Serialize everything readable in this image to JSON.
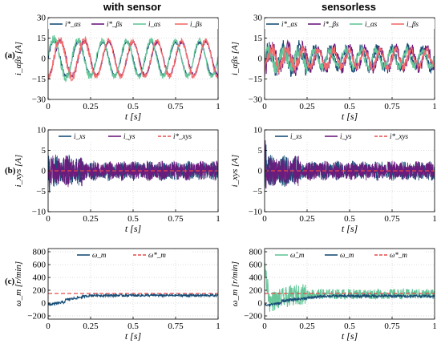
{
  "column_titles": [
    "with sensor",
    "sensorless"
  ],
  "row_labels": [
    "(a)",
    "(b)",
    "(c)"
  ],
  "colors": {
    "blue": "#184e77",
    "purple": "#6d1a7e",
    "green": "#66c79a",
    "salmon": "#f26d6d",
    "dashed_red": "#e84a4a"
  },
  "chart_data": [
    {
      "type": "line",
      "id": "a-sensor",
      "xlabel": "t [s]",
      "ylabel": "i_αβs [A]",
      "xlim": [
        0,
        1
      ],
      "ylim": [
        -30,
        30
      ],
      "xticks": [
        0,
        0.25,
        0.5,
        0.75,
        1
      ],
      "xticklabels": [
        "0",
        "0.25",
        "0.5",
        "0.75",
        "1"
      ],
      "yticks": [
        -30,
        -15,
        0,
        15,
        30
      ],
      "yticklabels": [
        "−30",
        "−15",
        "0",
        "15",
        "30"
      ],
      "legend": "top",
      "series": [
        {
          "name": "i*_αs",
          "color": "#184e77",
          "style": "sine",
          "amp": 12,
          "freq": 7,
          "phase": 0,
          "noise": 1
        },
        {
          "name": "i*_βs",
          "color": "#6d1a7e",
          "style": "sine",
          "amp": 12,
          "freq": 7,
          "phase": -1.57,
          "noise": 1
        },
        {
          "name": "i_αs",
          "color": "#66c79a",
          "style": "sine",
          "amp": 13,
          "freq": 7,
          "phase": 0.1,
          "noise": 2
        },
        {
          "name": "i_βs",
          "color": "#f26d6d",
          "style": "sine",
          "amp": 13,
          "freq": 7,
          "phase": -1.47,
          "noise": 2
        }
      ]
    },
    {
      "type": "line",
      "id": "a-sensorless",
      "xlabel": "t [s]",
      "ylabel": "i_αβs [A]",
      "xlim": [
        0,
        1
      ],
      "ylim": [
        -30,
        30
      ],
      "xticks": [
        0,
        0.25,
        0.5,
        0.75,
        1
      ],
      "xticklabels": [
        "0",
        "0.25",
        "0.5",
        "0.75",
        "1"
      ],
      "yticks": [
        -30,
        -15,
        0,
        15,
        30
      ],
      "yticklabels": [
        "−30",
        "−15",
        "0",
        "15",
        "30"
      ],
      "legend": "top",
      "series": [
        {
          "name": "i*_αs",
          "color": "#184e77",
          "style": "sine",
          "amp": 7,
          "freq": 11,
          "phase": 0,
          "noise": 4
        },
        {
          "name": "i*_βs",
          "color": "#6d1a7e",
          "style": "sine",
          "amp": 7,
          "freq": 11,
          "phase": -1.57,
          "noise": 4
        },
        {
          "name": "i_αs",
          "color": "#66c79a",
          "style": "sine",
          "amp": 6,
          "freq": 11,
          "phase": 0.2,
          "noise": 3
        },
        {
          "name": "i_βs",
          "color": "#f26d6d",
          "style": "sine",
          "amp": 6,
          "freq": 11,
          "phase": -1.37,
          "noise": 3
        }
      ]
    },
    {
      "type": "line",
      "id": "b-sensor",
      "xlabel": "t [s]",
      "ylabel": "i_xys [A]",
      "xlim": [
        0,
        1
      ],
      "ylim": [
        -10,
        10
      ],
      "xticks": [
        0,
        0.25,
        0.5,
        0.75,
        1
      ],
      "xticklabels": [
        "0",
        "0.25",
        "0.5",
        "0.75",
        "1"
      ],
      "yticks": [
        -10,
        -5,
        0,
        5,
        10
      ],
      "yticklabels": [
        "−10",
        "−5",
        "0",
        "5",
        "10"
      ],
      "legend": "top",
      "series": [
        {
          "name": "i_xs",
          "color": "#184e77",
          "style": "noise",
          "amp": 2.5
        },
        {
          "name": "i_ys",
          "color": "#6d1a7e",
          "style": "noise",
          "amp": 2.5
        },
        {
          "name": "i*_xys",
          "color": "#e84a4a",
          "style": "dashed",
          "value": 0
        }
      ]
    },
    {
      "type": "line",
      "id": "b-sensorless",
      "xlabel": "t [s]",
      "ylabel": "i_xys [A]",
      "xlim": [
        0,
        1
      ],
      "ylim": [
        -10,
        10
      ],
      "xticks": [
        0,
        0.25,
        0.5,
        0.75,
        1
      ],
      "xticklabels": [
        "0",
        "0.25",
        "0.5",
        "0.75",
        "1"
      ],
      "yticks": [
        -10,
        -5,
        0,
        5,
        10
      ],
      "yticklabels": [
        "−10",
        "−5",
        "0",
        "5",
        "10"
      ],
      "legend": "top",
      "series": [
        {
          "name": "i_xs",
          "color": "#184e77",
          "style": "noise",
          "amp": 2.5
        },
        {
          "name": "i_ys",
          "color": "#6d1a7e",
          "style": "noise",
          "amp": 2.5
        },
        {
          "name": "i*_xys",
          "color": "#e84a4a",
          "style": "dashed",
          "value": 0
        }
      ]
    },
    {
      "type": "line",
      "id": "c-sensor",
      "xlabel": "t [s]",
      "ylabel": "ω_m [r/min]",
      "xlim": [
        0,
        1
      ],
      "ylim": [
        -250,
        850
      ],
      "xticks": [
        0,
        0.25,
        0.5,
        0.75,
        1
      ],
      "xticklabels": [
        "0",
        "0.25",
        "0.5",
        "0.75",
        "1"
      ],
      "yticks": [
        -200,
        0,
        200,
        400,
        600,
        800
      ],
      "yticklabels": [
        "−200",
        "0",
        "200",
        "400",
        "600",
        "800"
      ],
      "legend": "top",
      "series": [
        {
          "name": "ω_m",
          "color": "#184e77",
          "style": "ramp",
          "final": 120,
          "rise": 0.25,
          "noise": 20
        },
        {
          "name": "ω*_m",
          "color": "#e84a4a",
          "style": "dashed",
          "value": 150
        }
      ]
    },
    {
      "type": "line",
      "id": "c-sensorless",
      "xlabel": "t [s]",
      "ylabel": "ω_m [r/min]",
      "xlim": [
        0,
        1
      ],
      "ylim": [
        -250,
        850
      ],
      "xticks": [
        0,
        0.25,
        0.5,
        0.75,
        1
      ],
      "xticklabels": [
        "0",
        "0.25",
        "0.5",
        "0.75",
        "1"
      ],
      "yticks": [
        -200,
        0,
        200,
        400,
        600,
        800
      ],
      "yticklabels": [
        "−200",
        "0",
        "200",
        "400",
        "600",
        "800"
      ],
      "legend": "top",
      "series": [
        {
          "name": "ω̂_m",
          "color": "#66c79a",
          "style": "spiky",
          "final": 140,
          "noise": 80
        },
        {
          "name": "ω_m",
          "color": "#184e77",
          "style": "ramp",
          "final": 110,
          "rise": 0.35,
          "noise": 20
        },
        {
          "name": "ω*_m",
          "color": "#e84a4a",
          "style": "dashed",
          "value": 150
        }
      ]
    }
  ]
}
